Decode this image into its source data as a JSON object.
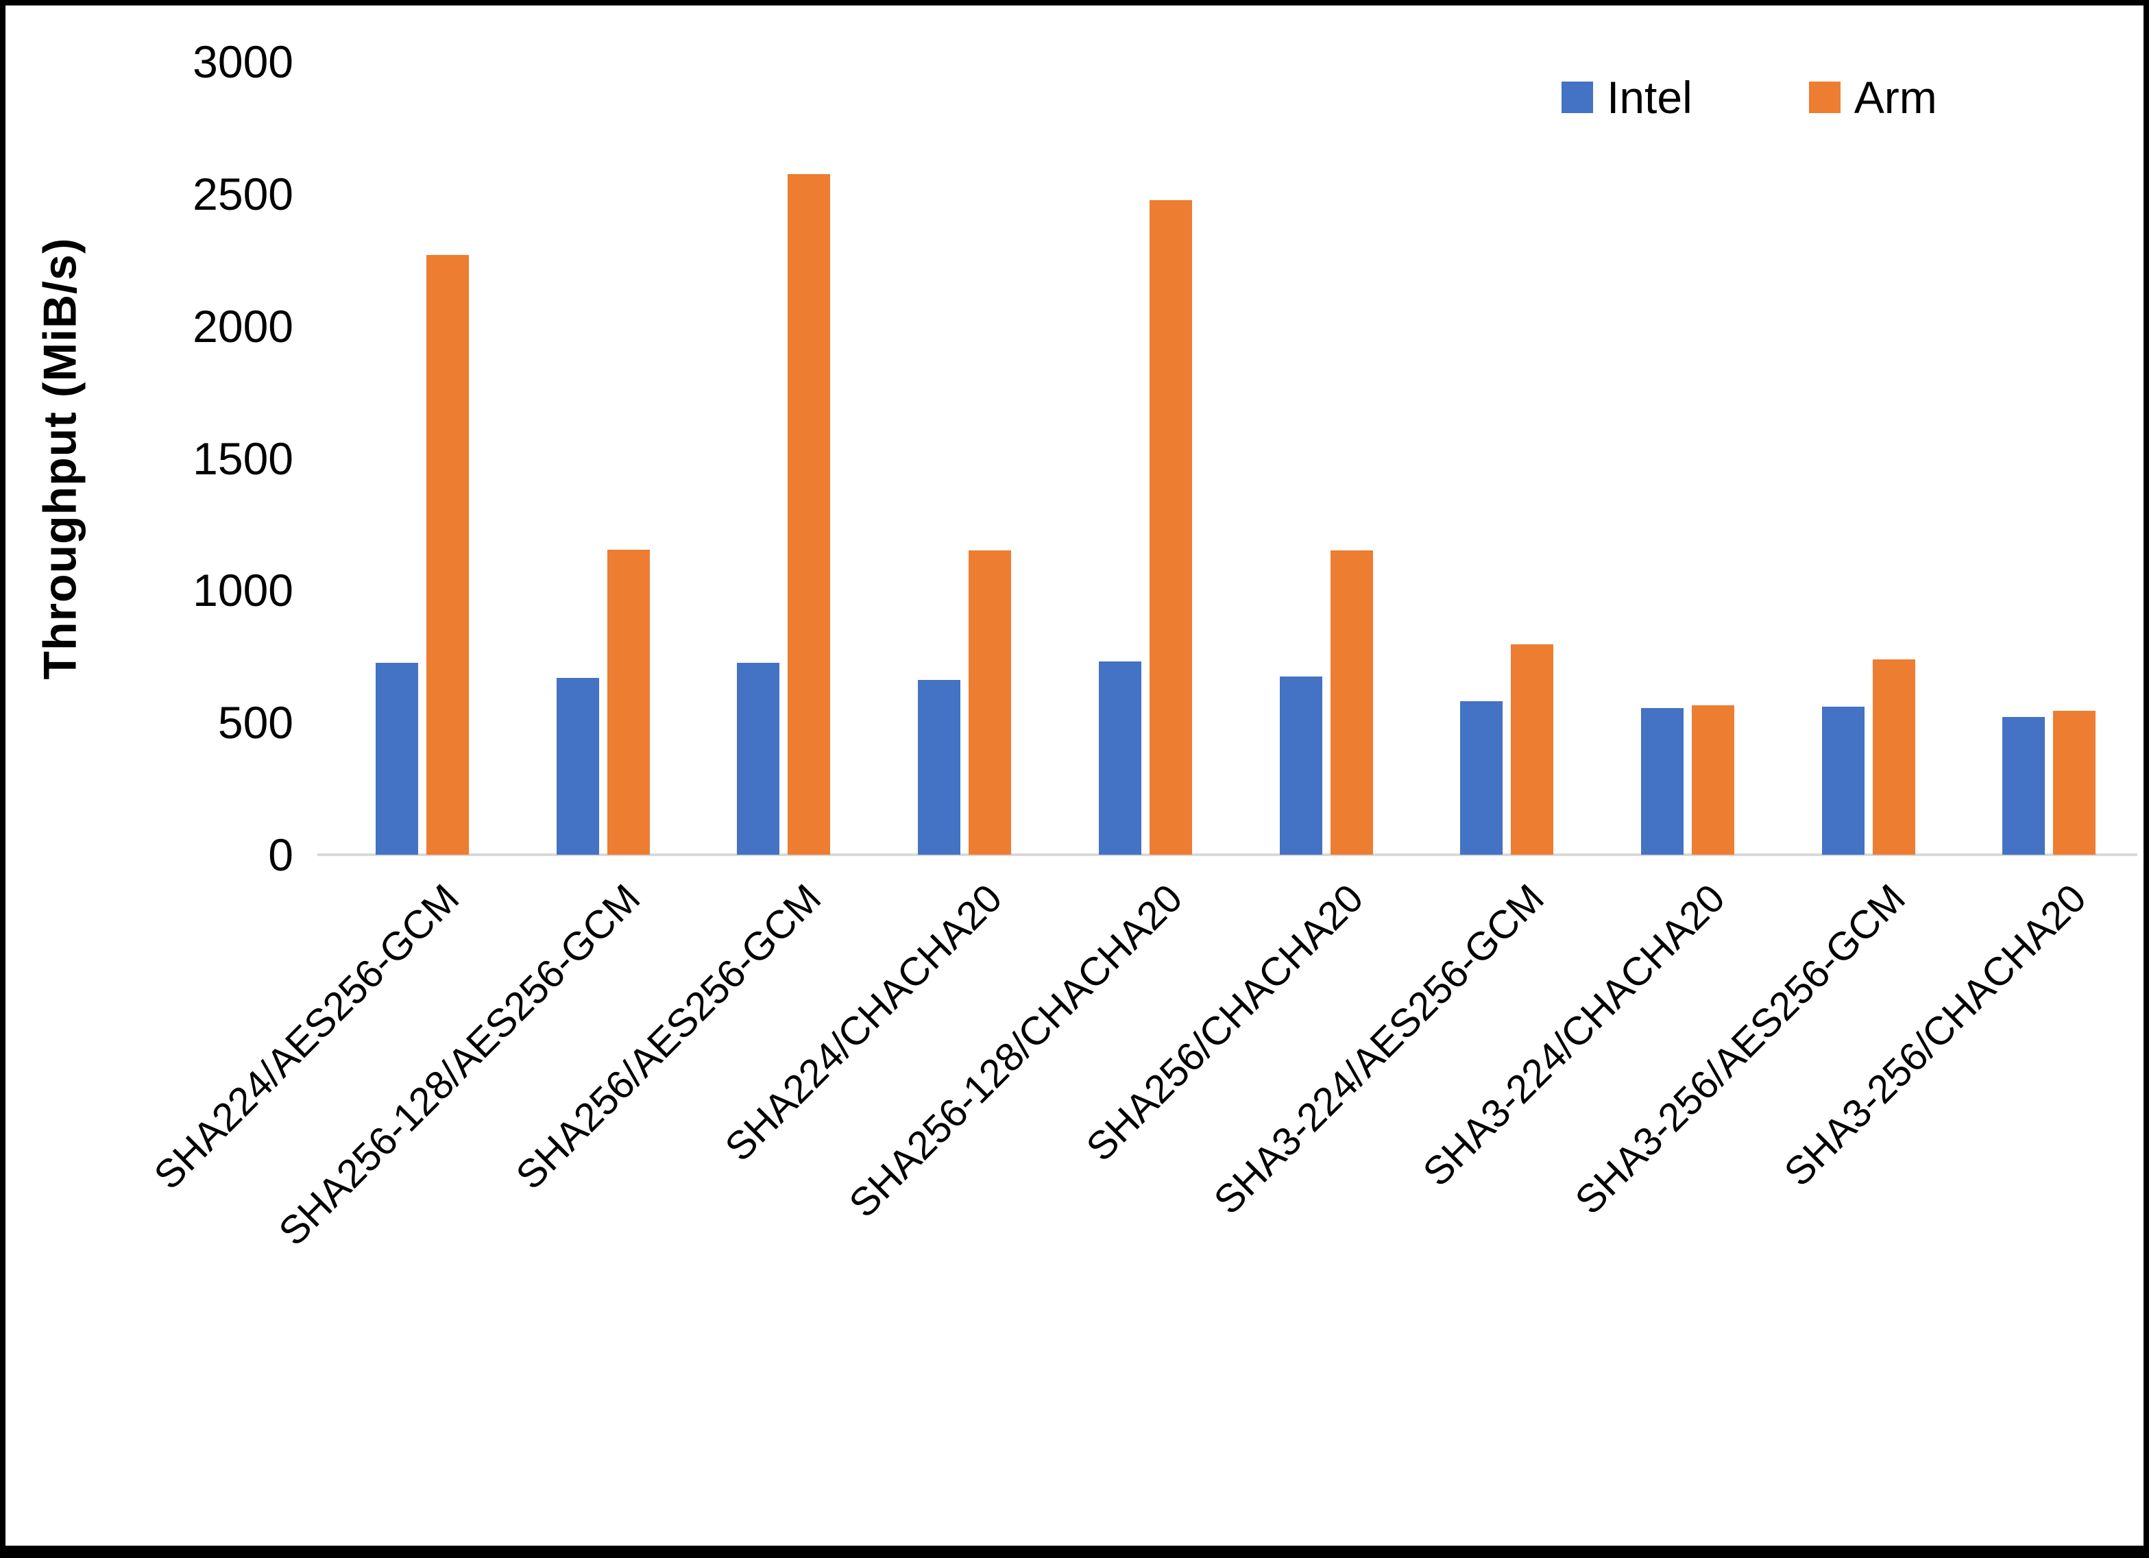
{
  "figure": {
    "background": "#FFFFFF",
    "frame_color": "#000000",
    "axis_line_color": "#D9D9D9"
  },
  "legend": {
    "items": [
      {
        "label": "Intel",
        "color": "#4472C4"
      },
      {
        "label": "Arm",
        "color": "#ED7D31"
      }
    ]
  },
  "chart_data": {
    "type": "bar",
    "title": "",
    "xlabel": "",
    "ylabel": "Throughput (MiB/s)",
    "ylim": [
      0,
      3000
    ],
    "yticks": [
      0,
      500,
      1000,
      1500,
      2000,
      2500,
      3000
    ],
    "grid": false,
    "legend_position": "top-right",
    "categories": [
      "SHA224/AES256-GCM",
      "SHA256-128/AES256-GCM",
      "SHA256/AES256-GCM",
      "SHA224/CHACHA20",
      "SHA256-128/CHACHA20",
      "SHA256/CHACHA20",
      "SHA3-224/AES256-GCM",
      "SHA3-224/CHACHA20",
      "SHA3-256/AES256-GCM",
      "SHA3-256/CHACHA20"
    ],
    "series": [
      {
        "name": "Intel",
        "color": "#4472C4",
        "values": [
          725,
          670,
          725,
          660,
          730,
          675,
          580,
          555,
          560,
          520
        ]
      },
      {
        "name": "Arm",
        "color": "#ED7D31",
        "values": [
          2270,
          1155,
          2575,
          1150,
          2475,
          1150,
          795,
          565,
          740,
          545
        ]
      }
    ]
  }
}
